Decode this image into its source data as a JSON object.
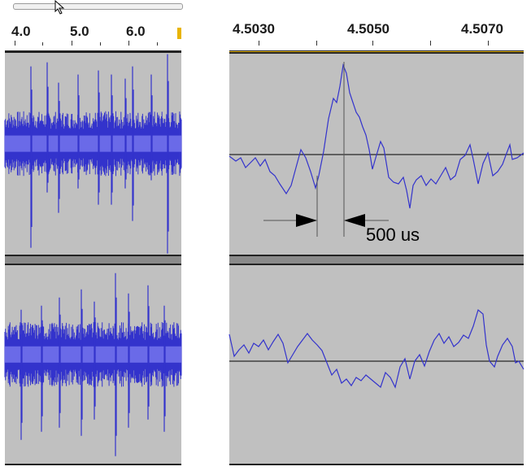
{
  "left_ruler": {
    "tick_labels": [
      "4.0",
      "5.0",
      "6.0"
    ]
  },
  "right_ruler": {
    "tick_labels": [
      "4.5030",
      "4.5050",
      "4.5070"
    ]
  },
  "annotation": {
    "label": "500 us"
  },
  "colors": {
    "waveform": "#3333cc",
    "waveform_light": "#6a6ae8",
    "track_background": "#c0c0c0",
    "zero_line": "#000000"
  },
  "icons": {
    "cursor": "mouse-pointer-icon"
  }
}
